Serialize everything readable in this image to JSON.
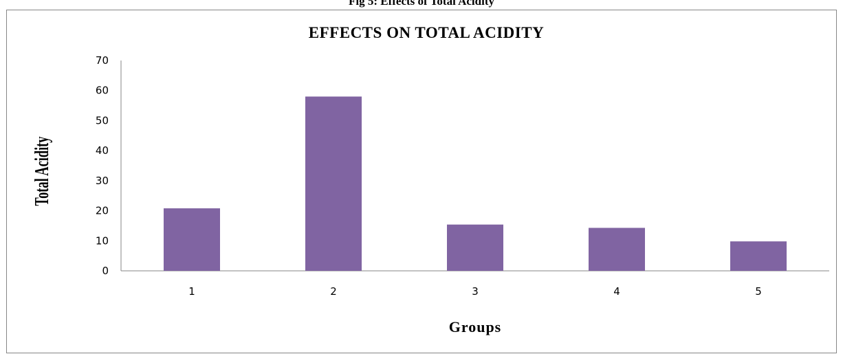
{
  "caption": "Fig 5: Effects of Total Acidity",
  "chart_data": {
    "type": "bar",
    "title": "EFFECTS ON TOTAL ACIDITY",
    "xlabel": "Groups",
    "ylabel": "Total Acidity",
    "categories": [
      "1",
      "2",
      "3",
      "4",
      "5"
    ],
    "values": [
      20.8,
      58,
      15.4,
      14.3,
      9.8
    ],
    "ylim": [
      0,
      70
    ],
    "yticks": [
      0,
      10,
      20,
      30,
      40,
      50,
      60,
      70
    ],
    "grid": false,
    "legend": "none",
    "bar_color": "#8064A2"
  }
}
